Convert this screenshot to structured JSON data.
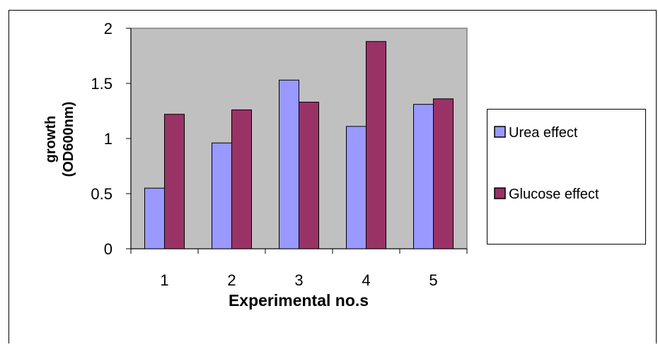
{
  "chart_data": {
    "type": "bar",
    "title": "",
    "xlabel": "Experimental no.s",
    "ylabel_lines": [
      "growth",
      "(OD600nm)"
    ],
    "categories": [
      "1",
      "2",
      "3",
      "4",
      "5"
    ],
    "ylim": [
      0,
      2
    ],
    "yticks": [
      "0",
      "0.5",
      "1",
      "1.5",
      "2"
    ],
    "grid": false,
    "legend_placement": "right",
    "plot_background": "#c0c0c0",
    "series": [
      {
        "name": "Urea effect",
        "color": "#9999ff",
        "values": [
          0.55,
          0.96,
          1.53,
          1.11,
          1.31
        ]
      },
      {
        "name": "Glucose effect",
        "color": "#993366",
        "values": [
          1.22,
          1.26,
          1.33,
          1.88,
          1.36
        ]
      }
    ]
  }
}
